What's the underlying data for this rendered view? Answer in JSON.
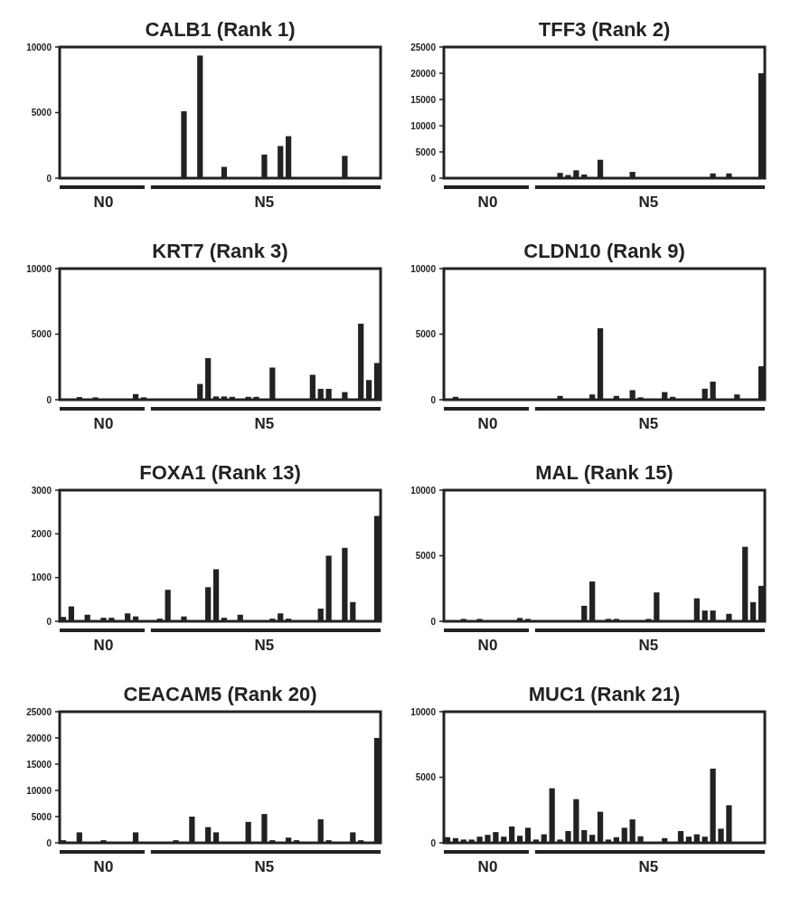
{
  "chart_data": [
    {
      "type": "bar",
      "title": "CALB1 (Rank 1)",
      "color": "#222222",
      "categories": [
        null,
        null,
        null,
        null,
        null,
        "N0",
        null,
        null,
        null,
        null,
        null,
        null,
        null,
        null,
        null,
        null,
        null,
        null,
        null,
        null,
        null,
        null,
        null,
        null,
        null,
        "N5",
        null,
        null,
        null,
        null,
        null,
        null,
        null,
        null,
        null,
        null,
        null,
        null,
        null,
        null
      ],
      "values": [
        0,
        0,
        0,
        0,
        0,
        0,
        0,
        0,
        0,
        0,
        0,
        0,
        0,
        0,
        0,
        5100,
        0,
        9350,
        0,
        0,
        860,
        0,
        0,
        0,
        0,
        1800,
        0,
        2450,
        3200,
        0,
        0,
        0,
        0,
        0,
        0,
        1700,
        0,
        0,
        0,
        0
      ],
      "ylim": [
        0,
        10000
      ],
      "yticks": [
        0,
        5000,
        10000
      ]
    },
    {
      "type": "bar",
      "title": "TFF3 (Rank 2)",
      "color": "#222222",
      "categories": [
        null,
        null,
        null,
        null,
        null,
        "N0",
        null,
        null,
        null,
        null,
        null,
        null,
        null,
        null,
        null,
        null,
        null,
        null,
        null,
        null,
        null,
        null,
        null,
        null,
        null,
        "N5",
        null,
        null,
        null,
        null,
        null,
        null,
        null,
        null,
        null,
        null,
        null,
        null,
        null,
        null
      ],
      "values": [
        0,
        0,
        0,
        0,
        0,
        0,
        0,
        0,
        0,
        0,
        0,
        0,
        0,
        0,
        1000,
        600,
        1500,
        700,
        0,
        3500,
        0,
        0,
        0,
        1200,
        0,
        0,
        0,
        0,
        0,
        0,
        0,
        0,
        0,
        900,
        0,
        900,
        0,
        0,
        0,
        20000
      ],
      "ylim": [
        0,
        25000
      ],
      "yticks": [
        0,
        5000,
        10000,
        15000,
        20000,
        25000
      ]
    },
    {
      "type": "bar",
      "title": "KRT7 (Rank 3)",
      "color": "#222222",
      "categories": [
        null,
        null,
        null,
        null,
        null,
        "N0",
        null,
        null,
        null,
        null,
        null,
        null,
        null,
        null,
        null,
        null,
        null,
        null,
        null,
        null,
        null,
        null,
        null,
        null,
        null,
        "N5",
        null,
        null,
        null,
        null,
        null,
        null,
        null,
        null,
        null,
        null,
        null,
        null,
        null,
        null
      ],
      "values": [
        0,
        0,
        200,
        0,
        180,
        0,
        0,
        0,
        0,
        430,
        180,
        0,
        null,
        0,
        0,
        0,
        0,
        1200,
        3170,
        250,
        250,
        220,
        0,
        220,
        220,
        0,
        2450,
        0,
        0,
        0,
        0,
        1900,
        830,
        830,
        0,
        580,
        0,
        5800,
        1500,
        2800
      ],
      "ylim": [
        0,
        10000
      ],
      "yticks": [
        0,
        5000,
        10000
      ]
    },
    {
      "type": "bar",
      "title": "CLDN10 (Rank 9)",
      "color": "#222222",
      "categories": [
        null,
        null,
        null,
        null,
        null,
        "N0",
        null,
        null,
        null,
        null,
        null,
        null,
        null,
        null,
        null,
        null,
        null,
        null,
        null,
        null,
        null,
        null,
        null,
        null,
        null,
        "N5",
        null,
        null,
        null,
        null,
        null,
        null,
        null,
        null,
        null,
        null,
        null,
        null,
        null,
        null
      ],
      "values": [
        0,
        220,
        0,
        null,
        null,
        0,
        0,
        0,
        0,
        0,
        0,
        0,
        0,
        0,
        290,
        0,
        null,
        0,
        400,
        5450,
        0,
        290,
        0,
        730,
        180,
        0,
        0,
        580,
        220,
        0,
        0,
        0,
        840,
        1380,
        0,
        0,
        400,
        0,
        0,
        2550
      ],
      "ylim": [
        0,
        10000
      ],
      "yticks": [
        0,
        5000,
        10000
      ]
    },
    {
      "type": "bar",
      "title": "FOXA1 (Rank 13)",
      "color": "#222222",
      "categories": [
        null,
        null,
        null,
        null,
        null,
        "N0",
        null,
        null,
        null,
        null,
        null,
        null,
        null,
        null,
        null,
        null,
        null,
        null,
        null,
        null,
        null,
        null,
        null,
        null,
        null,
        "N5",
        null,
        null,
        null,
        null,
        null,
        null,
        null,
        null,
        null,
        null,
        null,
        null,
        null,
        null
      ],
      "values": [
        100,
        340,
        0,
        150,
        0,
        80,
        80,
        0,
        180,
        110,
        0,
        0,
        60,
        720,
        0,
        110,
        0,
        0,
        780,
        1190,
        80,
        0,
        150,
        0,
        0,
        0,
        60,
        180,
        60,
        0,
        0,
        0,
        290,
        1500,
        0,
        1680,
        440,
        0,
        0,
        2410
      ],
      "ylim": [
        0,
        3000
      ],
      "yticks": [
        0,
        1000,
        2000,
        3000
      ]
    },
    {
      "type": "bar",
      "title": "MAL (Rank 15)",
      "color": "#222222",
      "categories": [
        null,
        null,
        null,
        null,
        null,
        "N0",
        null,
        null,
        null,
        null,
        null,
        null,
        null,
        null,
        null,
        null,
        null,
        null,
        null,
        null,
        null,
        null,
        null,
        null,
        null,
        "N5",
        null,
        null,
        null,
        null,
        null,
        null,
        null,
        null,
        null,
        null,
        null,
        null,
        null,
        null
      ],
      "values": [
        0,
        0,
        180,
        0,
        180,
        0,
        0,
        0,
        0,
        250,
        180,
        0,
        0,
        0,
        0,
        0,
        0,
        1180,
        3040,
        0,
        180,
        180,
        0,
        0,
        0,
        180,
        2200,
        0,
        0,
        0,
        0,
        1750,
        820,
        820,
        0,
        570,
        0,
        5680,
        1460,
        2700
      ],
      "ylim": [
        0,
        10000
      ],
      "yticks": [
        0,
        5000,
        10000
      ]
    },
    {
      "type": "bar",
      "title": "CEACAM5 (Rank 20)",
      "color": "#222222",
      "categories": [
        null,
        null,
        null,
        null,
        null,
        "N0",
        null,
        null,
        null,
        null,
        null,
        null,
        null,
        null,
        null,
        null,
        null,
        null,
        null,
        null,
        null,
        null,
        null,
        null,
        null,
        "N5",
        null,
        null,
        null,
        null,
        null,
        null,
        null,
        null,
        null,
        null,
        null,
        null,
        null,
        null
      ],
      "values": [
        500,
        0,
        2000,
        0,
        0,
        500,
        0,
        0,
        0,
        2000,
        0,
        0,
        0,
        0,
        500,
        0,
        5000,
        0,
        3000,
        2000,
        0,
        0,
        0,
        4000,
        0,
        5500,
        500,
        0,
        1000,
        500,
        0,
        0,
        4500,
        500,
        0,
        0,
        2000,
        500,
        0,
        20000
      ],
      "ylim": [
        0,
        25000
      ],
      "yticks": [
        0,
        5000,
        10000,
        15000,
        20000,
        25000
      ]
    },
    {
      "type": "bar",
      "title": "MUC1 (Rank 21)",
      "color": "#222222",
      "categories": [
        null,
        null,
        null,
        null,
        null,
        "N0",
        null,
        null,
        null,
        null,
        null,
        null,
        null,
        null,
        null,
        null,
        null,
        null,
        null,
        null,
        null,
        null,
        null,
        null,
        null,
        "N5",
        null,
        null,
        null,
        null,
        null,
        null,
        null,
        null,
        null,
        null,
        null,
        null,
        null,
        null
      ],
      "values": [
        430,
        360,
        250,
        250,
        470,
        610,
        820,
        470,
        1250,
        540,
        1150,
        250,
        650,
        4160,
        250,
        900,
        3330,
        970,
        610,
        2370,
        250,
        430,
        1150,
        1790,
        500,
        0,
        0,
        360,
        0,
        900,
        470,
        650,
        470,
        5660,
        1080,
        2870,
        null,
        null,
        null,
        null
      ],
      "ylim": [
        0,
        10000
      ],
      "yticks": [
        0,
        5000,
        10000
      ]
    }
  ]
}
